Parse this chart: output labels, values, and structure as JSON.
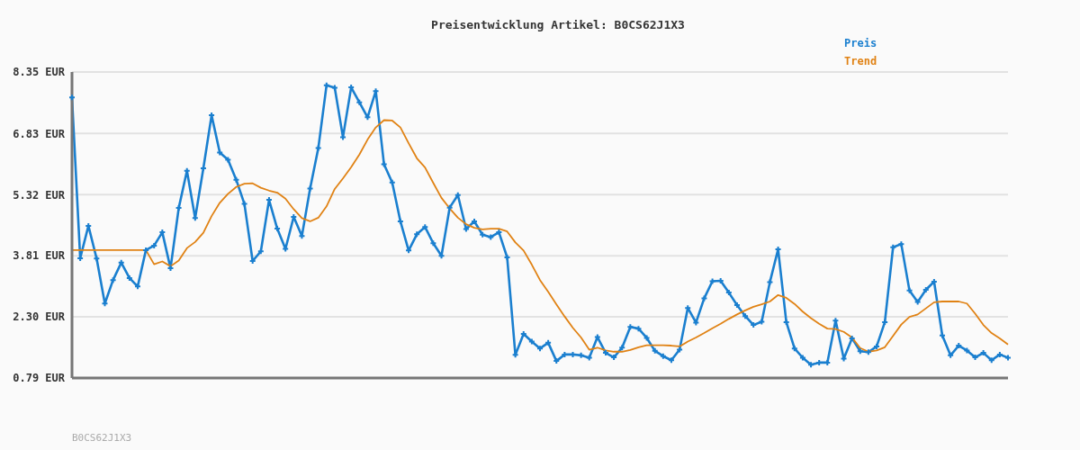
{
  "chart_data": {
    "type": "line",
    "title": "Preisentwicklung Artikel: B0CS62J1X3",
    "annotations": [
      "B0CS62J1X3"
    ],
    "categories": [
      null,
      null,
      null,
      null,
      null,
      null,
      null,
      null,
      null,
      null,
      null,
      null,
      null,
      null,
      null,
      null,
      null,
      null,
      null,
      null,
      null,
      null,
      null,
      null,
      null,
      null,
      null,
      null,
      null,
      null,
      null,
      null,
      null,
      null,
      null,
      null,
      null,
      null,
      null,
      null,
      null,
      null,
      null,
      null,
      null,
      null,
      null,
      null,
      null,
      null,
      null,
      null,
      null,
      null,
      null,
      null,
      null,
      null,
      null,
      null,
      null,
      null,
      null,
      null,
      null,
      null,
      null,
      null,
      null,
      null,
      null,
      null,
      null,
      null,
      null,
      null,
      null,
      null,
      null,
      null,
      null,
      null,
      null,
      null,
      null,
      null,
      null,
      null,
      null,
      null,
      null,
      null,
      null,
      null,
      null,
      null,
      null,
      null,
      null,
      null,
      null,
      null,
      null,
      null,
      null,
      null,
      null,
      null,
      null,
      null,
      null,
      null,
      null,
      null,
      null
    ],
    "series": [
      {
        "name": "Preis",
        "color": "#1a7fcf",
        "marker": "cross",
        "values": [
          7.72,
          3.75,
          4.55,
          3.74,
          2.63,
          3.21,
          3.64,
          3.26,
          3.05,
          3.95,
          4.06,
          4.39,
          3.5,
          4.99,
          5.91,
          4.74,
          5.97,
          7.28,
          6.36,
          6.18,
          5.69,
          5.09,
          3.68,
          3.92,
          5.19,
          4.48,
          3.98,
          4.77,
          4.3,
          5.47,
          6.47,
          8.02,
          7.96,
          6.74,
          7.97,
          7.6,
          7.23,
          7.88,
          6.07,
          5.62,
          4.66,
          3.94,
          4.34,
          4.52,
          4.12,
          3.81,
          5.0,
          5.31,
          4.47,
          4.66,
          4.33,
          4.27,
          4.39,
          3.77,
          1.36,
          1.88,
          1.69,
          1.52,
          1.66,
          1.21,
          1.37,
          1.37,
          1.35,
          1.29,
          1.8,
          1.41,
          1.3,
          1.54,
          2.05,
          2.01,
          1.78,
          1.46,
          1.33,
          1.23,
          1.49,
          2.52,
          2.16,
          2.76,
          3.18,
          3.19,
          2.9,
          2.59,
          2.32,
          2.1,
          2.18,
          3.16,
          3.97,
          2.17,
          1.52,
          1.29,
          1.12,
          1.17,
          1.17,
          2.21,
          1.27,
          1.77,
          1.45,
          1.43,
          1.57,
          2.17,
          4.02,
          4.1,
          2.95,
          2.67,
          2.97,
          3.17,
          1.84,
          1.35,
          1.59,
          1.47,
          1.3,
          1.41,
          1.23,
          1.37,
          1.29
        ]
      },
      {
        "name": "Trend",
        "color": "#e08214",
        "marker": "none",
        "values": [
          3.95,
          3.95,
          3.95,
          3.95,
          3.95,
          3.95,
          3.95,
          3.95,
          3.95,
          3.95,
          3.6,
          3.67,
          3.55,
          3.69,
          4.0,
          4.15,
          4.38,
          4.79,
          5.12,
          5.34,
          5.51,
          5.59,
          5.6,
          5.49,
          5.42,
          5.37,
          5.22,
          4.96,
          4.74,
          4.66,
          4.75,
          5.03,
          5.46,
          5.72,
          6.0,
          6.31,
          6.68,
          6.98,
          7.16,
          7.15,
          6.98,
          6.59,
          6.22,
          5.99,
          5.61,
          5.24,
          4.98,
          4.75,
          4.59,
          4.5,
          4.46,
          4.48,
          4.48,
          4.41,
          4.14,
          3.94,
          3.59,
          3.21,
          2.92,
          2.61,
          2.31,
          2.03,
          1.79,
          1.49,
          1.54,
          1.47,
          1.44,
          1.44,
          1.48,
          1.55,
          1.6,
          1.6,
          1.6,
          1.59,
          1.57,
          1.69,
          1.79,
          1.9,
          2.02,
          2.13,
          2.25,
          2.36,
          2.46,
          2.55,
          2.61,
          2.68,
          2.84,
          2.77,
          2.62,
          2.43,
          2.27,
          2.13,
          2.01,
          2.0,
          1.93,
          1.79,
          1.53,
          1.44,
          1.47,
          1.55,
          1.83,
          2.11,
          2.3,
          2.36,
          2.51,
          2.66,
          2.68,
          2.68,
          2.68,
          2.63,
          2.38,
          2.1,
          1.9,
          1.77,
          1.62
        ]
      }
    ],
    "ylim": [
      0.79,
      8.35
    ],
    "yticks": [
      {
        "value": 0.79,
        "label": "0.79 EUR"
      },
      {
        "value": 2.3,
        "label": "2.30 EUR"
      },
      {
        "value": 3.81,
        "label": "3.81 EUR"
      },
      {
        "value": 5.32,
        "label": "5.32 EUR"
      },
      {
        "value": 6.83,
        "label": "6.83 EUR"
      },
      {
        "value": 8.35,
        "label": "8.35 EUR"
      }
    ],
    "grid": "y",
    "legend": "top right"
  }
}
